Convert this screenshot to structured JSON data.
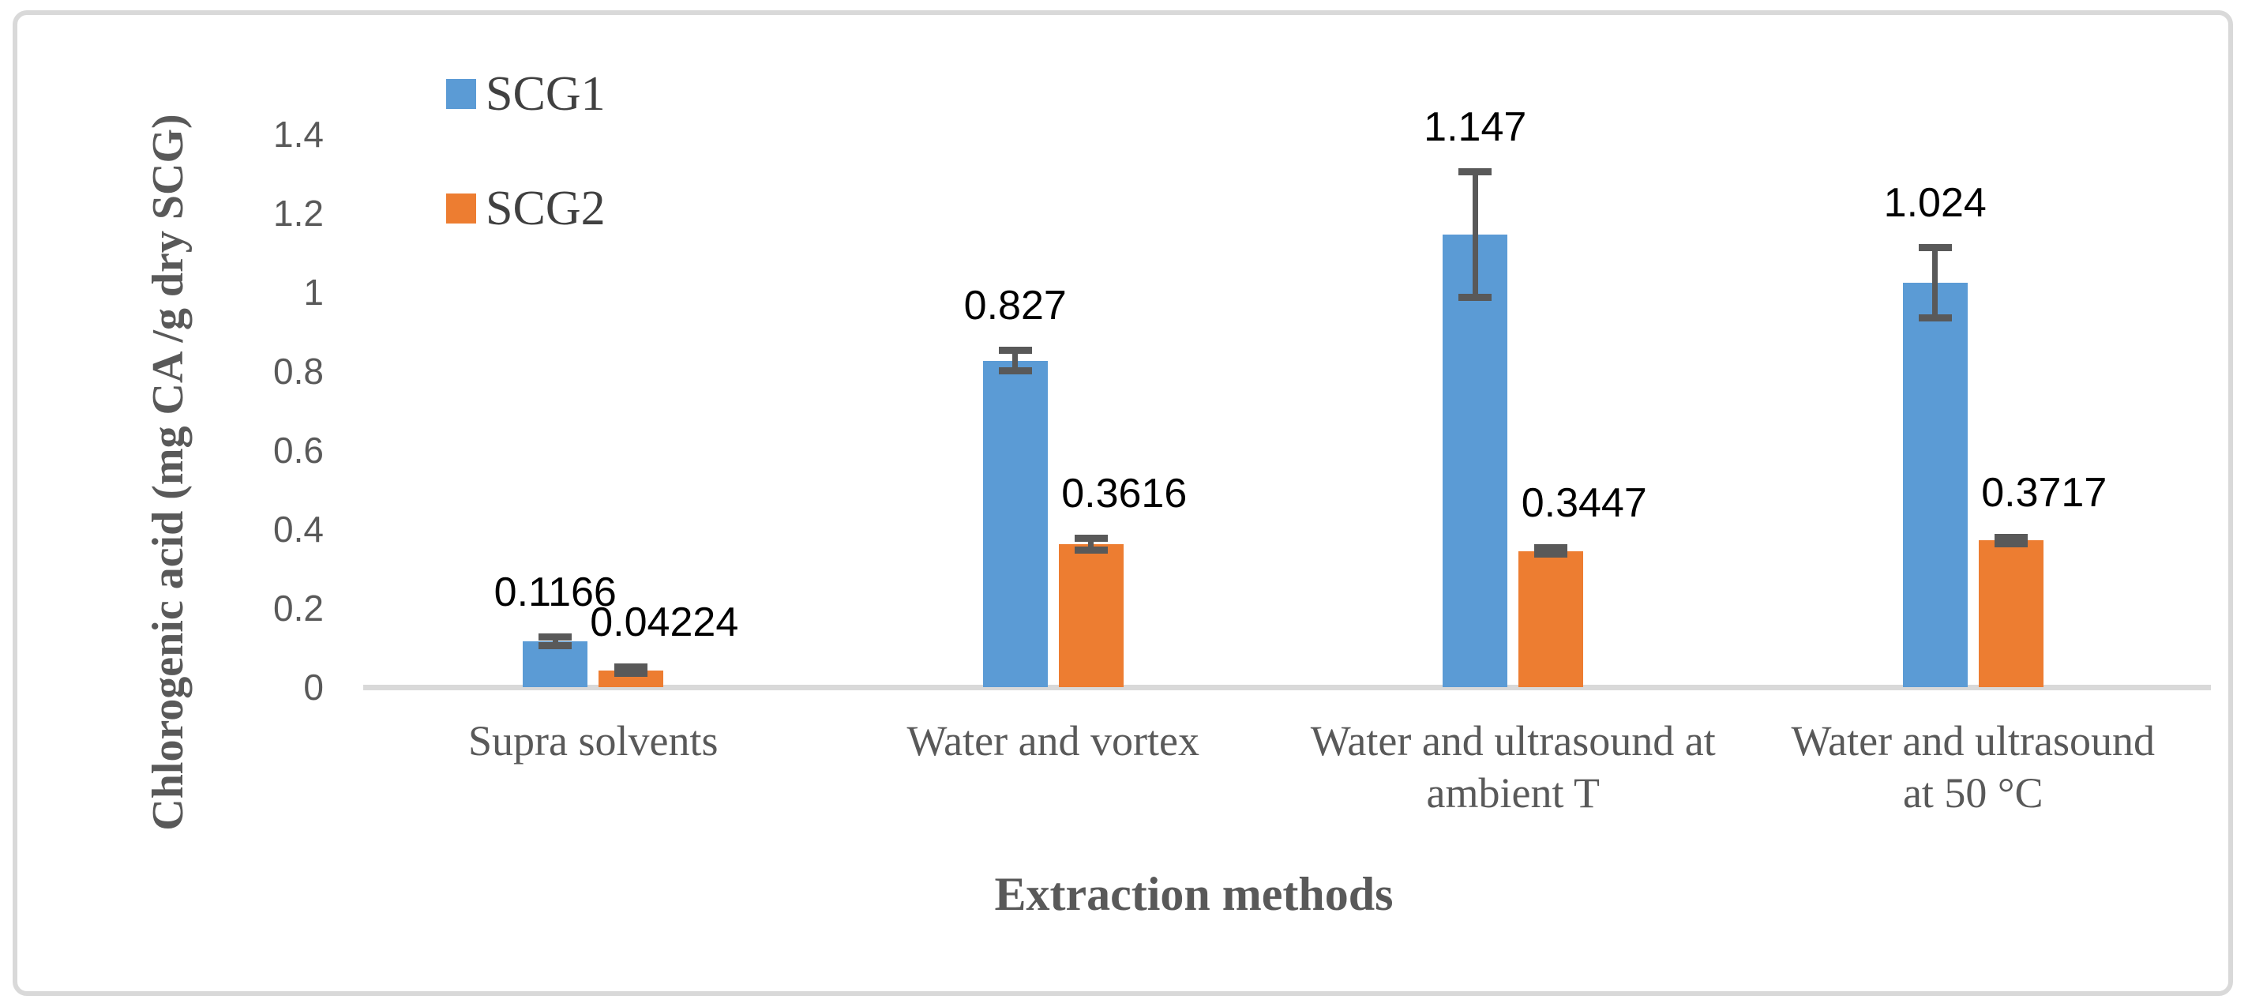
{
  "figure": {
    "background": "#FFFFFF",
    "border_color": "#D9D9D9"
  },
  "chart_data": {
    "type": "bar",
    "title": "",
    "xlabel": "Extraction methods",
    "ylabel": "Chlorogenic acid (mg  CA /g dry SCG)",
    "categories": [
      "Supra solvents",
      "Water and vortex",
      "Water and ultrasound at ambient T",
      "Water and  ultrasound at 50 °C"
    ],
    "category_lines": [
      [
        "Supra solvents"
      ],
      [
        "Water and vortex"
      ],
      [
        "Water and ultrasound at",
        "ambient T"
      ],
      [
        "Water and  ultrasound",
        "at 50 °C"
      ]
    ],
    "series": [
      {
        "name": "SCG1",
        "color": "#5B9BD5",
        "values": [
          0.1166,
          0.827,
          1.147,
          1.024
        ],
        "labels": [
          "0.1166",
          "0.827",
          "1.147",
          "1.024"
        ],
        "errors": [
          0.012,
          0.027,
          0.16,
          0.09
        ]
      },
      {
        "name": "SCG2",
        "color": "#ED7D31",
        "values": [
          0.04224,
          0.3616,
          0.3447,
          0.3717
        ],
        "labels": [
          "0.04224",
          "0.3616",
          "0.3447",
          "0.3717"
        ],
        "errors": [
          0.009,
          0.016,
          0.009,
          0.009
        ]
      }
    ],
    "ylim": [
      0,
      1.5
    ],
    "yticks": [
      0,
      0.2,
      0.4,
      0.6,
      0.8,
      1,
      1.2,
      1.4
    ],
    "ytick_labels": [
      "0",
      "0.2",
      "0.4",
      "0.6",
      "0.8",
      "1",
      "1.2",
      "1.4"
    ],
    "grid": false,
    "legend_position": "inside-top-left",
    "error_bar_color": "#595959",
    "axis_line_color": "#D9D9D9",
    "tick_label_color": "#595959",
    "data_label_color": "#000000"
  }
}
